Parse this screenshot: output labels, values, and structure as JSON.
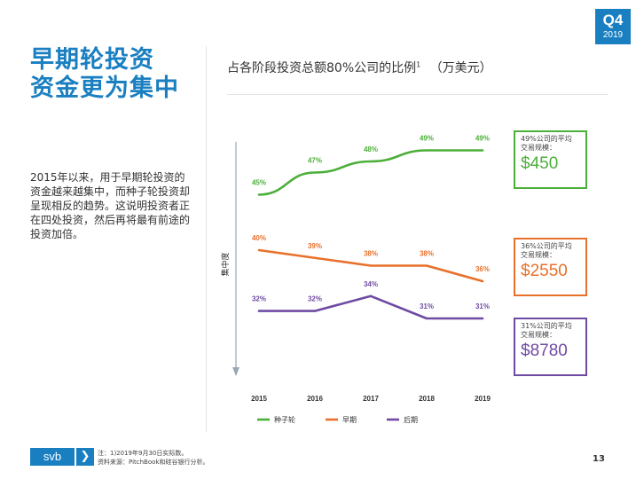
{
  "badge": {
    "quarter": "Q4",
    "year": "2019"
  },
  "headline": {
    "line1": "早期轮投资",
    "line2": "资金更为集中"
  },
  "body_text": "2015年以来，用于早期轮投资的资金越来越集中，而种子轮投资却呈现相反的趋势。这说明投资者正在四处投资，然后再将最有前途的投资加倍。",
  "chart_title": {
    "text": "占各阶段投资总额80%公司的比例",
    "sup": "1",
    "unit": "（万美元）"
  },
  "chart_data": {
    "type": "line",
    "categories": [
      "2015",
      "2016",
      "2017",
      "2018",
      "2019"
    ],
    "ylabel": "集中度",
    "series": [
      {
        "name": "种子轮",
        "color": "#4caf3a",
        "values": [
          45,
          47,
          48,
          49,
          49
        ],
        "labels": [
          "45%",
          "47%",
          "48%",
          "49%",
          "49%"
        ]
      },
      {
        "name": "早期",
        "color": "#e8702a",
        "values": [
          40,
          39,
          38,
          38,
          36
        ],
        "labels": [
          "40%",
          "39%",
          "38%",
          "38%",
          "36%"
        ]
      },
      {
        "name": "后期",
        "color": "#6f4aa3",
        "values": [
          32,
          32,
          34,
          31,
          31
        ],
        "labels": [
          "32%",
          "32%",
          "34%",
          "31%",
          "31%"
        ]
      }
    ],
    "legend_position": "bottom"
  },
  "callouts": [
    {
      "label1": "49%公司的平均",
      "label2": "交易规模：",
      "value": "$450",
      "color": "#4caf3a"
    },
    {
      "label1": "36%公司的平均",
      "label2": "交易规模：",
      "value": "$2550",
      "color": "#e8702a"
    },
    {
      "label1": "31%公司的平均",
      "label2": "交易规模：",
      "value": "$8780",
      "color": "#6f4aa3"
    }
  ],
  "footer": {
    "logo_text": "svb",
    "logo_arrow": "❯",
    "note1": "注：1)2019年9月30日实际数。",
    "note2": "资料来源：PitchBook和硅谷银行分析。",
    "page": "13"
  }
}
